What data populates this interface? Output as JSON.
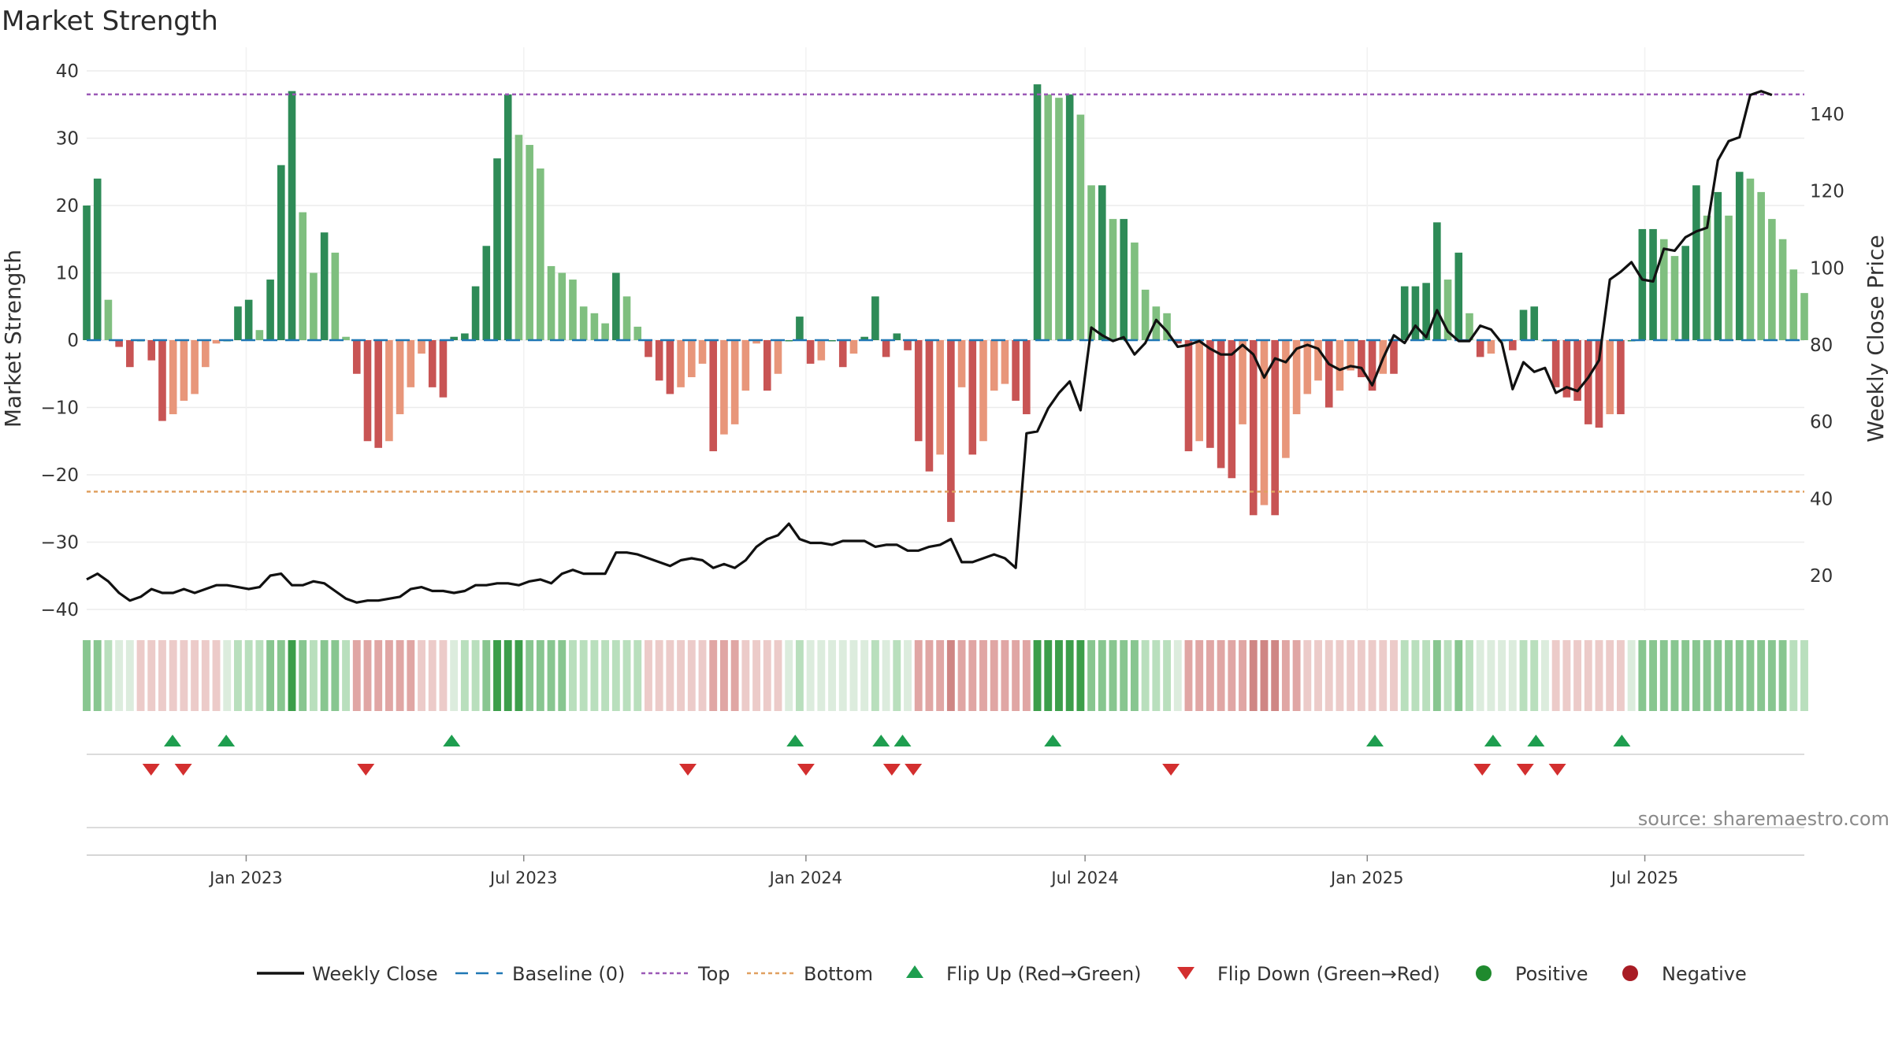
{
  "chart_data": {
    "type": "bar",
    "title": "Market Strength",
    "ylabel": "Market Strength",
    "y2label": "Weekly Close Price",
    "ylim": [
      -40,
      40
    ],
    "y2lim": [
      10,
      150
    ],
    "yticks": [
      -40,
      -30,
      -20,
      -10,
      0,
      10,
      20,
      30,
      40
    ],
    "y2ticks": [
      20,
      40,
      60,
      80,
      100,
      120,
      140
    ],
    "date_range": [
      "2022-09-19",
      "2025-10-13"
    ],
    "x_ticks": [
      {
        "date": "2023-01-01",
        "label": "Jan 2023"
      },
      {
        "date": "2023-07-01",
        "label": "Jul 2023"
      },
      {
        "date": "2024-01-01",
        "label": "Jan 2024"
      },
      {
        "date": "2024-07-01",
        "label": "Jul 2024"
      },
      {
        "date": "2025-01-01",
        "label": "Jan 2025"
      },
      {
        "date": "2025-07-01",
        "label": "Jul 2025"
      }
    ],
    "top_line": 36.5,
    "bottom_line": -22.5,
    "baseline": 0,
    "strength": [
      20,
      24,
      6,
      -1,
      -4,
      0,
      -3,
      -12,
      -11,
      -9,
      -8,
      -4,
      -0.5,
      0,
      5,
      6,
      1.5,
      9,
      26,
      37,
      19,
      10,
      16,
      13,
      0.5,
      -5,
      -15,
      -16,
      -15,
      -11,
      -7,
      -2,
      -7,
      -8.5,
      0.5,
      1,
      8,
      14,
      27,
      36.5,
      30.5,
      29,
      25.5,
      11,
      10,
      9,
      5,
      4,
      2.5,
      10,
      6.5,
      2,
      -2.5,
      -6,
      -8,
      -7,
      -5.5,
      -3.5,
      -16.5,
      -14,
      -12.5,
      -7.5,
      -0.5,
      -7.5,
      -5,
      0,
      3.5,
      -3.5,
      -3,
      0,
      -4,
      -2,
      0.5,
      6.5,
      -2.5,
      1,
      -1.5,
      -15,
      -19.5,
      -17,
      -27,
      -7,
      -17,
      -15,
      -7.5,
      -6.5,
      -9,
      -11,
      38,
      36.5,
      36,
      36.5,
      33.5,
      23,
      23,
      18,
      18,
      14.5,
      7.5,
      5,
      4,
      -0.5,
      -16.5,
      -15,
      -16,
      -19,
      -20.5,
      -12.5,
      -26,
      -24.5,
      -26,
      -17.5,
      -11,
      -8,
      -6,
      -10,
      -7.5,
      -4.5,
      -5.5,
      -7.5,
      -5,
      -5,
      8,
      8,
      8.5,
      17.5,
      9,
      13,
      4,
      -2.5,
      -2,
      0,
      -1.5,
      4.5,
      5,
      0,
      -7,
      -8.5,
      -9,
      -12.5,
      -13,
      -11,
      -11,
      0,
      16.5,
      16.5,
      15,
      12.5,
      14,
      23,
      18.5,
      22,
      18.5,
      25,
      24,
      22,
      18,
      15,
      10.5,
      7
    ],
    "close": [
      19,
      20.5,
      18.5,
      15.5,
      13.5,
      14.5,
      16.5,
      15.5,
      15.5,
      16.5,
      15.5,
      16.5,
      17.5,
      17.5,
      17,
      16.5,
      17,
      20,
      20.5,
      17.5,
      17.5,
      18.5,
      18,
      16,
      14,
      13,
      13.5,
      13.5,
      14,
      14.5,
      16.5,
      17,
      16,
      16,
      15.5,
      16,
      17.5,
      17.5,
      18,
      18,
      17.5,
      18.5,
      19,
      18,
      20.5,
      21.5,
      20.5,
      20.5,
      20.5,
      26,
      26,
      25.5,
      24.5,
      23.5,
      22.5,
      24,
      24.5,
      24,
      22,
      23,
      22,
      24,
      27.5,
      29.5,
      30.5,
      33.5,
      29.5,
      28.5,
      28.5,
      28,
      29,
      29,
      29,
      27.5,
      28,
      28,
      26.5,
      26.5,
      27.5,
      28,
      29.5,
      23.5,
      23.5,
      24.5,
      25.5,
      24.5,
      22,
      57,
      57.5,
      63.5,
      67.5,
      70.5,
      63,
      84.5,
      82.5,
      81,
      82,
      77.5,
      80.5,
      86.5,
      83.5,
      79.5,
      80,
      81,
      79,
      77.5,
      77.5,
      80,
      77.5,
      71.5,
      76.5,
      75.5,
      79,
      80,
      79,
      75,
      73.5,
      74.5,
      74,
      69.5,
      76.5,
      82.5,
      80.5,
      85,
      82,
      89,
      83.5,
      81,
      81,
      85,
      84,
      80.5,
      68.5,
      75.5,
      73,
      74,
      67.5,
      69,
      68,
      71.5,
      76,
      97,
      99,
      101.5,
      97,
      96.5,
      105,
      104.5,
      108,
      109.5,
      110.5,
      128,
      133,
      134,
      145,
      146,
      145
    ]
  },
  "regime_strip": {
    "levels": [
      2,
      2,
      1,
      0,
      0,
      -1,
      -1,
      -1,
      -1,
      -1,
      -1,
      -1,
      -1,
      0,
      1,
      1,
      1,
      2,
      2,
      3,
      2,
      1,
      2,
      2,
      1,
      -2,
      -2,
      -2,
      -2,
      -2,
      -2,
      -1,
      -1,
      -1,
      0,
      1,
      1,
      2,
      3,
      3,
      3,
      2,
      2,
      2,
      2,
      1,
      1,
      1,
      1,
      1,
      1,
      1,
      -1,
      -1,
      -1,
      -1,
      -1,
      -1,
      -2,
      -2,
      -2,
      -1,
      -1,
      -1,
      -1,
      0,
      1,
      0,
      0,
      0,
      0,
      0,
      0,
      1,
      0,
      1,
      0,
      -2,
      -2,
      -2,
      -3,
      -2,
      -2,
      -2,
      -2,
      -2,
      -2,
      -2,
      3,
      3,
      3,
      3,
      3,
      2,
      2,
      2,
      2,
      2,
      1,
      1,
      1,
      0,
      -2,
      -2,
      -2,
      -2,
      -2,
      -2,
      -3,
      -3,
      -3,
      -2,
      -2,
      -1,
      -1,
      -1,
      -1,
      -1,
      -1,
      -1,
      -1,
      -1,
      1,
      1,
      1,
      2,
      1,
      2,
      1,
      0,
      0,
      0,
      0,
      1,
      1,
      0,
      -1,
      -1,
      -1,
      -1,
      -1,
      -1,
      -1,
      0,
      2,
      2,
      2,
      2,
      2,
      2,
      2,
      2,
      2,
      2,
      2,
      2,
      2,
      2,
      1,
      1
    ]
  },
  "flip_up_dates": [
    "2022-11-14",
    "2022-12-19",
    "2023-05-15",
    "2023-12-25",
    "2024-02-19",
    "2024-03-04",
    "2024-06-10",
    "2025-01-06",
    "2025-03-24",
    "2025-04-21",
    "2025-06-16"
  ],
  "flip_down_dates": [
    "2022-10-31",
    "2022-11-21",
    "2023-03-20",
    "2023-10-16",
    "2024-01-01",
    "2024-02-26",
    "2024-03-11",
    "2024-08-26",
    "2025-03-17",
    "2025-04-14",
    "2025-05-05"
  ],
  "legend": {
    "items": [
      {
        "key": "line",
        "label": "Weekly Close",
        "color": "#111111"
      },
      {
        "key": "baseline",
        "label": "Baseline (0)",
        "color": "#1f77b4"
      },
      {
        "key": "top",
        "label": "Top",
        "color": "#9b59b6"
      },
      {
        "key": "bottom",
        "label": "Bottom",
        "color": "#e0a060"
      },
      {
        "key": "flip-up",
        "label": "Flip Up (Red→Green)",
        "color": "#1e9e4f"
      },
      {
        "key": "flip-down",
        "label": "Flip Down (Green→Red)",
        "color": "#d32f2f"
      },
      {
        "key": "positive",
        "label": "Positive",
        "color": "#1f8a2e"
      },
      {
        "key": "negative",
        "label": "Negative",
        "color": "#a81c24"
      }
    ]
  },
  "source": "source: sharemaestro.com",
  "colors": {
    "strong_green": "#2e8b57",
    "light_green": "#7fbf7f",
    "strong_red": "#c85454",
    "light_red": "#e8967a",
    "baseline": "#1f77b4"
  }
}
